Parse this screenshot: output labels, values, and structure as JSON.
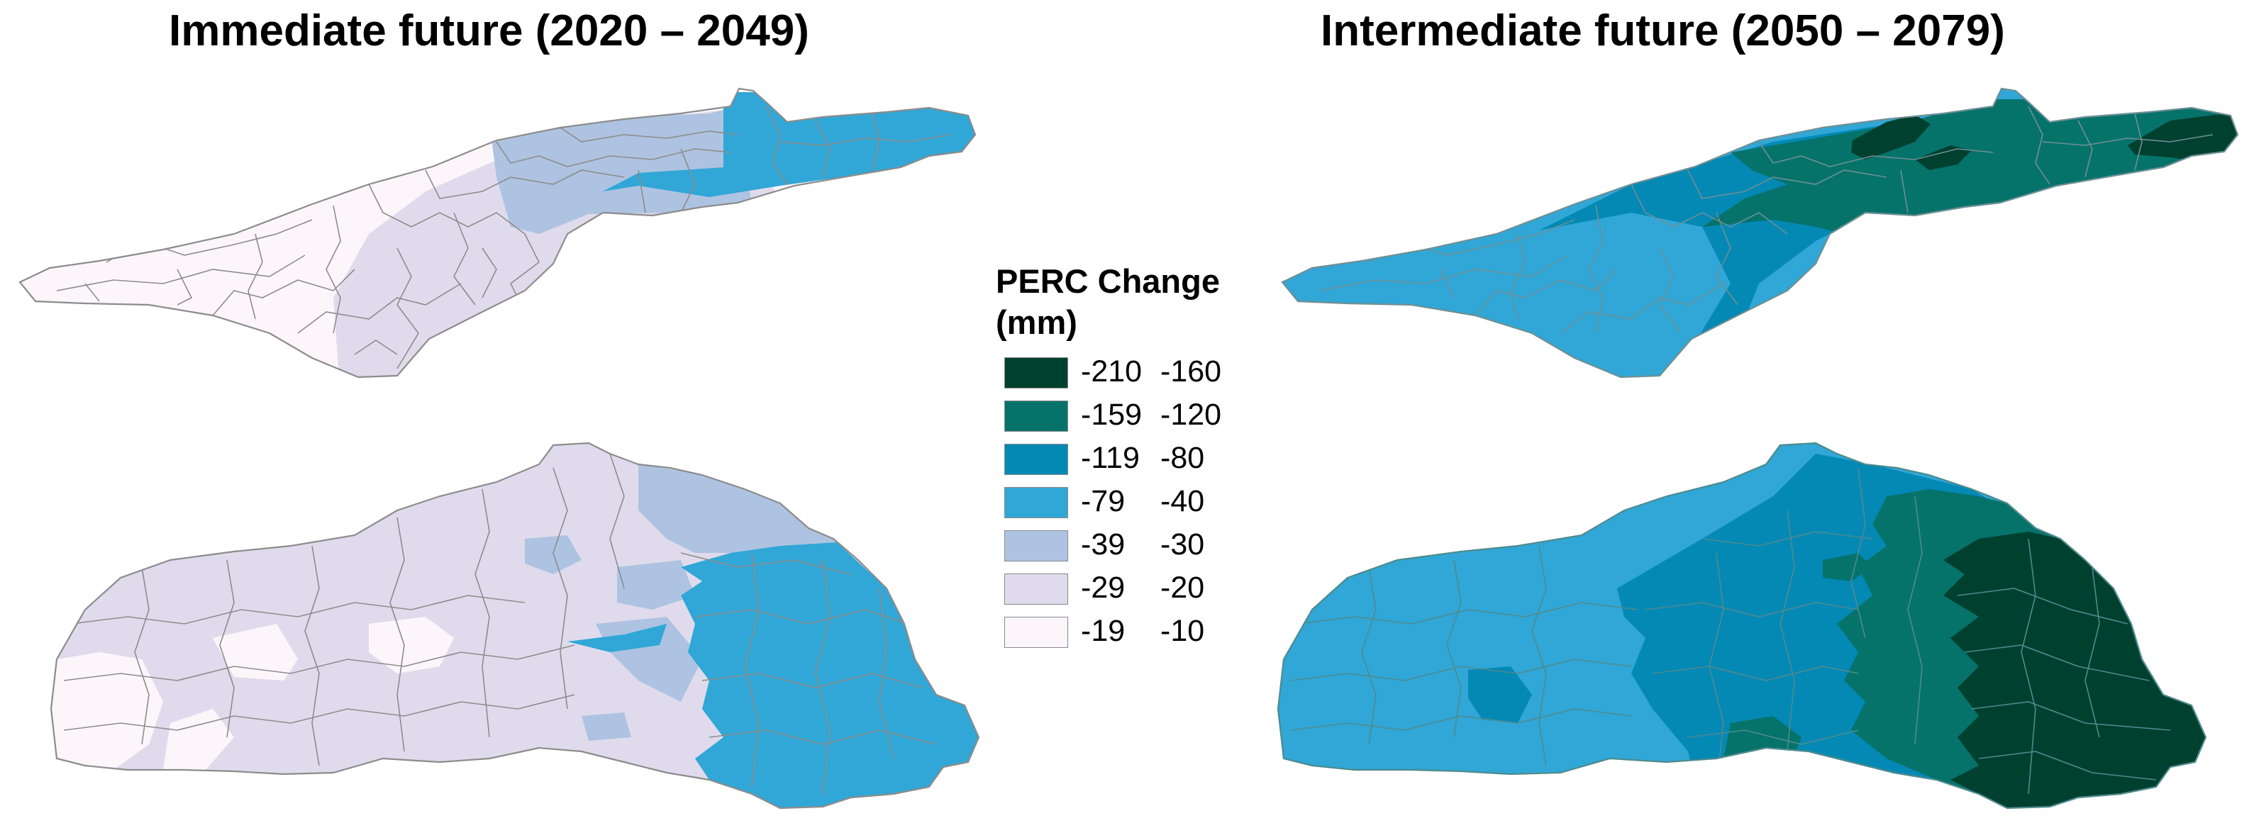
{
  "titles": {
    "left": "Immediate future (2020 – 2049)",
    "right": "Intermediate future (2050 – 2079)"
  },
  "legend": {
    "title_line1": "PERC Change",
    "title_line2": "(mm)",
    "classes": [
      {
        "min": "-210",
        "max": "-160",
        "color": "#00402f"
      },
      {
        "min": "-159",
        "max": "-120",
        "color": "#05736a"
      },
      {
        "min": "-119",
        "max": "-80",
        "color": "#0489b5"
      },
      {
        "min": "-79",
        "max": "-40",
        "color": "#30a7d6"
      },
      {
        "min": "-39",
        "max": "-30",
        "color": "#aec3e1"
      },
      {
        "min": "-29",
        "max": "-20",
        "color": "#e0dbec"
      },
      {
        "min": "-19",
        "max": "-10",
        "color": "#fcf6fb"
      }
    ]
  },
  "colors": {
    "boundary": "#8c8c8c"
  }
}
